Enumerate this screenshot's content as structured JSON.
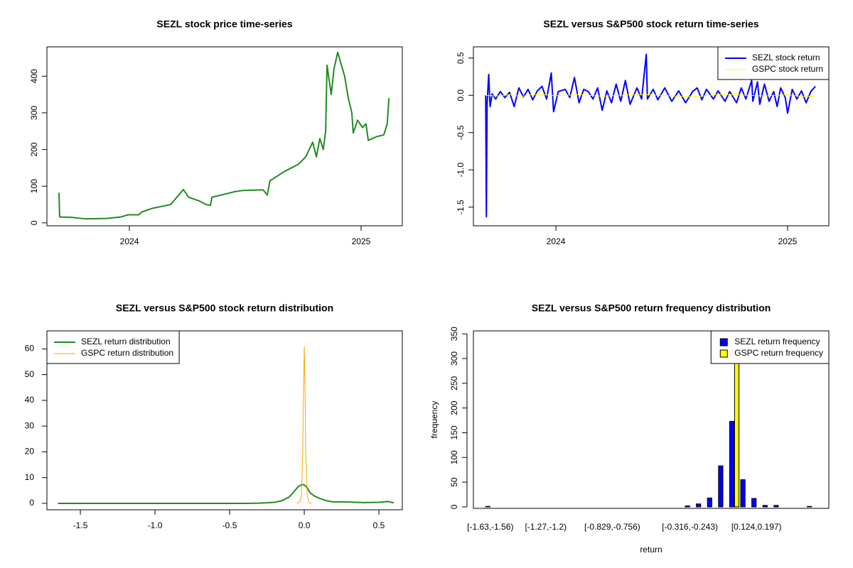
{
  "chart_data": [
    {
      "type": "line",
      "title": "SEZL stock price time-series",
      "xlim": [
        2023.644,
        2025.178
      ],
      "xticks": [
        2024,
        2025
      ],
      "ylim": [
        -8,
        480
      ],
      "yticks": [
        0,
        100,
        200,
        300,
        400
      ],
      "series": [
        {
          "color": "#228B22",
          "x": [
            2023.696,
            2023.699,
            2023.748,
            2023.81,
            2023.902,
            2023.963,
            2023.994,
            2024.04,
            2024.055,
            2024.101,
            2024.178,
            2024.233,
            2024.255,
            2024.301,
            2024.331,
            2024.35,
            2024.356,
            2024.423,
            2024.454,
            2024.485,
            2024.577,
            2024.595,
            2024.607,
            2024.669,
            2024.73,
            2024.761,
            2024.791,
            2024.807,
            2024.822,
            2024.837,
            2024.847,
            2024.853,
            2024.871,
            2024.883,
            2024.899,
            2024.929,
            2024.945,
            2024.96,
            2024.966,
            2024.985,
            2025.006,
            2025.021,
            2025.031,
            2025.067,
            2025.098,
            2025.113,
            2025.12
          ],
          "values": [
            82,
            16,
            15,
            11,
            12,
            16,
            22,
            22,
            30,
            40,
            50,
            91,
            70,
            60,
            50,
            48,
            70,
            80,
            85,
            88,
            90,
            76,
            115,
            140,
            160,
            180,
            220,
            180,
            230,
            200,
            250,
            430,
            350,
            420,
            465,
            400,
            340,
            300,
            245,
            280,
            260,
            270,
            225,
            235,
            240,
            270,
            340
          ]
        }
      ]
    },
    {
      "type": "line",
      "title": "SEZL versus S&P500 stock return time-series",
      "xlim": [
        2023.644,
        2025.178
      ],
      "xticks": [
        2024,
        2025
      ],
      "ylim": [
        -1.75,
        0.65
      ],
      "yticks": [
        0.5,
        {
          "value": 0,
          "label": "0.0"
        },
        -0.5,
        {
          "value": -1,
          "label": "-1.0"
        },
        -1.5
      ],
      "legend": "topright",
      "series": [
        {
          "name": "SEZL stock return",
          "color": "#0000FF",
          "x": [
            2023.697,
            2023.7,
            2023.703,
            2023.71,
            2023.716,
            2023.725,
            2023.74,
            2023.76,
            2023.78,
            2023.8,
            2023.82,
            2023.84,
            2023.86,
            2023.88,
            2023.9,
            2023.92,
            2023.94,
            2023.96,
            2023.98,
            2023.99,
            2024.01,
            2024.04,
            2024.06,
            2024.08,
            2024.1,
            2024.12,
            2024.14,
            2024.16,
            2024.18,
            2024.2,
            2024.22,
            2024.24,
            2024.26,
            2024.28,
            2024.3,
            2024.32,
            2024.35,
            2024.37,
            2024.39,
            2024.395,
            2024.42,
            2024.44,
            2024.47,
            2024.5,
            2024.53,
            2024.56,
            2024.59,
            2024.61,
            2024.63,
            2024.65,
            2024.68,
            2024.7,
            2024.73,
            2024.75,
            2024.78,
            2024.8,
            2024.82,
            2024.845,
            2024.85,
            2024.87,
            2024.88,
            2024.9,
            2024.92,
            2024.94,
            2024.955,
            2024.97,
            2024.99,
            2025.0,
            2025.02,
            2025.04,
            2025.06,
            2025.08,
            2025.1,
            2025.12
          ],
          "values": [
            0,
            -1.63,
            -0.12,
            0.28,
            -0.15,
            0.02,
            -0.05,
            0.05,
            -0.03,
            0.04,
            -0.15,
            0.1,
            -0.02,
            0.08,
            -0.06,
            0.06,
            0.12,
            -0.05,
            0.3,
            -0.22,
            0.05,
            0.08,
            -0.03,
            0.24,
            -0.1,
            0.08,
            0.05,
            -0.05,
            0.1,
            -0.2,
            0.06,
            -0.1,
            0.15,
            -0.08,
            0.2,
            -0.12,
            0.1,
            -0.05,
            0.55,
            -0.05,
            0.08,
            -0.06,
            0.1,
            -0.08,
            0.06,
            -0.1,
            0.05,
            0.1,
            -0.06,
            0.08,
            -0.05,
            0.06,
            -0.08,
            0.05,
            -0.1,
            0.1,
            -0.05,
            0.2,
            -0.08,
            0.18,
            -0.12,
            0.15,
            -0.08,
            0.05,
            -0.15,
            0.1,
            -0.03,
            -0.24,
            0.08,
            -0.05,
            0.06,
            -0.1,
            0.05,
            0.12
          ]
        },
        {
          "name": "GSPC stock return",
          "color": "#FFFF00",
          "x": [
            2023.697,
            2023.75,
            2023.8,
            2023.85,
            2023.9,
            2023.95,
            2024.0,
            2024.1,
            2024.2,
            2024.3,
            2024.4,
            2024.5,
            2024.6,
            2024.7,
            2024.8,
            2024.9,
            2025.0,
            2025.06,
            2025.12
          ],
          "values": [
            0,
            -0.01,
            0.01,
            -0.015,
            0.012,
            0.008,
            -0.005,
            0.01,
            -0.012,
            0.006,
            0.01,
            -0.008,
            -0.02,
            0.012,
            0.005,
            -0.01,
            0.008,
            -0.015,
            -0.01
          ]
        }
      ]
    },
    {
      "type": "line",
      "title": "SEZL versus S&P500 stock return distribution",
      "xlim": [
        -1.724,
        0.657
      ],
      "xticks": [
        -1.5,
        {
          "value": -1,
          "label": "-1.0"
        },
        -0.5,
        {
          "value": 0,
          "label": "0.0"
        },
        0.5
      ],
      "ylim": [
        -2.5,
        67
      ],
      "yticks": [
        0,
        10,
        20,
        30,
        40,
        50,
        60
      ],
      "legend": "topleft",
      "series": [
        {
          "name": "SEZL return distribution",
          "color": "#228B22",
          "x": [
            -1.65,
            -1.2,
            -0.8,
            -0.4,
            -0.3,
            -0.2,
            -0.15,
            -0.1,
            -0.07,
            -0.04,
            -0.02,
            -0.01,
            0,
            0.02,
            0.04,
            0.07,
            0.1,
            0.15,
            0.2,
            0.25,
            0.3,
            0.4,
            0.5,
            0.56,
            0.6
          ],
          "values": [
            0,
            0,
            0,
            0,
            0.1,
            0.4,
            1,
            2.5,
            4.5,
            6.5,
            7.2,
            7.3,
            7.2,
            6,
            4,
            2.8,
            2,
            1,
            0.5,
            0.6,
            0.5,
            0.3,
            0.4,
            0.7,
            0.2
          ]
        },
        {
          "name": "GSPC return distribution",
          "color": "#FFA500",
          "x": [
            -0.05,
            -0.03,
            -0.02,
            -0.01,
            -0.005,
            0,
            0.005,
            0.01,
            0.02,
            0.03,
            0.05
          ],
          "values": [
            0,
            0.5,
            3,
            20,
            45,
            61,
            45,
            20,
            3,
            0.5,
            0
          ]
        }
      ]
    },
    {
      "type": "bar",
      "title": "SEZL versus S&P500 return frequency distribution",
      "x_label": "return",
      "y_label": "frequency",
      "categories": [
        "[-1.63,-1.56)",
        null,
        null,
        null,
        null,
        "[-1.27,-1.2)",
        null,
        null,
        null,
        null,
        null,
        "[-0.829,-0.756)",
        null,
        null,
        null,
        null,
        null,
        null,
        "[-0.316,-0.243)",
        null,
        null,
        null,
        null,
        null,
        "[0.124,0.197)",
        null,
        null,
        null,
        null,
        null
      ],
      "ylim": [
        -3,
        356
      ],
      "yticks": [
        0,
        50,
        100,
        150,
        200,
        250,
        300,
        350
      ],
      "legend": "topright",
      "series": [
        {
          "name": "SEZL return frequency",
          "color": "#0000FF",
          "values": [
            1,
            0,
            0,
            0,
            0,
            0,
            0,
            0,
            0,
            0,
            0,
            0,
            0,
            0,
            0,
            0,
            0,
            0,
            2,
            6,
            18,
            83,
            173,
            55,
            17,
            3,
            3,
            0,
            0,
            1
          ]
        },
        {
          "name": "GSPC return frequency",
          "color": "#FFFF00",
          "values": [
            0,
            0,
            0,
            0,
            0,
            0,
            0,
            0,
            0,
            0,
            0,
            0,
            0,
            0,
            0,
            0,
            0,
            0,
            0,
            0,
            0,
            0,
            362,
            0,
            0,
            0,
            0,
            0,
            0,
            0
          ]
        }
      ]
    }
  ]
}
